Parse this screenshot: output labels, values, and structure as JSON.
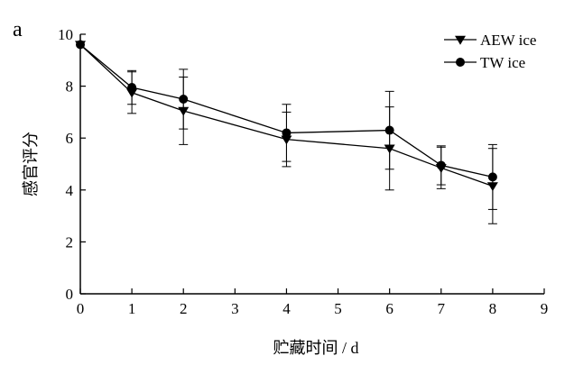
{
  "chart_data": {
    "type": "line",
    "panel_label": "a",
    "title": "",
    "xlabel": "贮藏时间 / d",
    "ylabel": "感官评分",
    "xlim": [
      0,
      9
    ],
    "ylim": [
      0,
      10
    ],
    "x_ticks": [
      0,
      1,
      2,
      3,
      4,
      5,
      6,
      7,
      8,
      9
    ],
    "y_ticks": [
      0,
      2,
      4,
      6,
      8,
      10
    ],
    "legend_position": "top-right",
    "grid": false,
    "series": [
      {
        "name": "AEW ice",
        "marker": "triangle-down",
        "x": [
          0,
          1,
          2,
          4,
          6,
          7,
          8
        ],
        "y": [
          9.6,
          7.75,
          7.05,
          5.95,
          5.6,
          4.85,
          4.15
        ],
        "error": [
          0,
          0.8,
          1.3,
          1.05,
          1.6,
          0.8,
          1.45
        ]
      },
      {
        "name": "TW ice",
        "marker": "circle",
        "x": [
          0,
          1,
          2,
          4,
          6,
          7,
          8
        ],
        "y": [
          9.6,
          7.95,
          7.5,
          6.2,
          6.3,
          4.95,
          4.5
        ],
        "error": [
          0,
          0.65,
          1.15,
          1.1,
          1.5,
          0.75,
          1.25
        ]
      }
    ]
  }
}
